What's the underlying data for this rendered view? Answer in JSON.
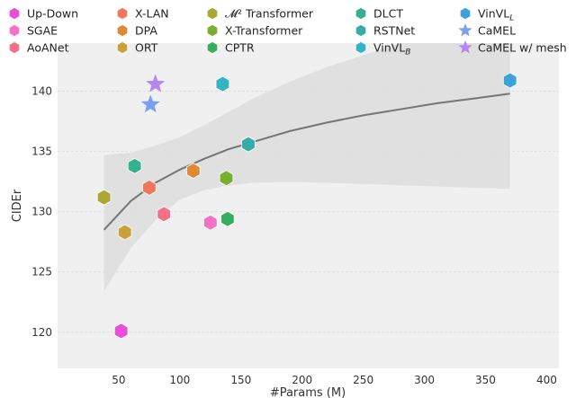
{
  "chart_data": {
    "type": "scatter",
    "title": "",
    "xlabel": "#Params (M)",
    "ylabel": "CIDEr",
    "xlim": [
      0,
      410
    ],
    "ylim": [
      117,
      144
    ],
    "xticks": [
      50,
      100,
      150,
      200,
      250,
      300,
      350,
      400
    ],
    "yticks": [
      120,
      125,
      130,
      135,
      140
    ],
    "grid": true,
    "legend_position": "top",
    "series": [
      {
        "name": "Up-Down",
        "marker": "hexagon",
        "color": "#e84fd9",
        "x": 52,
        "y": 120.1
      },
      {
        "name": "SGAE",
        "marker": "hexagon",
        "color": "#f273c3",
        "x": 125,
        "y": 129.1
      },
      {
        "name": "AoANet",
        "marker": "hexagon",
        "color": "#f0718a",
        "x": 87,
        "y": 129.8
      },
      {
        "name": "X-LAN",
        "marker": "hexagon",
        "color": "#f0765c",
        "x": 75,
        "y": 132.0
      },
      {
        "name": "DPA",
        "marker": "hexagon",
        "color": "#dd8a32",
        "x": 111,
        "y": 133.4
      },
      {
        "name": "ORT",
        "marker": "hexagon",
        "color": "#c8a13c",
        "x": 55,
        "y": 128.3
      },
      {
        "name": "M² Transformer",
        "marker": "hexagon",
        "color": "#a8a832",
        "x": 38,
        "y": 131.2
      },
      {
        "name": "X-Transformer",
        "marker": "hexagon",
        "color": "#77b02f",
        "x": 138,
        "y": 132.8
      },
      {
        "name": "CPTR",
        "marker": "hexagon",
        "color": "#35ae5f",
        "x": 139,
        "y": 129.4
      },
      {
        "name": "DLCT",
        "marker": "hexagon",
        "color": "#36b08f",
        "x": 63,
        "y": 133.8
      },
      {
        "name": "RSTNet",
        "marker": "hexagon",
        "color": "#35aca5",
        "x": 156,
        "y": 135.6
      },
      {
        "name": "VinVL_B",
        "marker": "hexagon",
        "color": "#35b2c4",
        "x": 135,
        "y": 140.6
      },
      {
        "name": "VinVL_L",
        "marker": "hexagon",
        "color": "#3aa3dc",
        "x": 370,
        "y": 140.9
      },
      {
        "name": "CaMEL",
        "marker": "star",
        "color": "#7a9ef0",
        "x": 76,
        "y": 138.9
      },
      {
        "name": "CaMEL w/ mesh",
        "marker": "star",
        "color": "#b585ee",
        "x": 80,
        "y": 140.6
      }
    ],
    "trend": {
      "type": "log-fit",
      "x": [
        38,
        60,
        80,
        100,
        120,
        140,
        160,
        190,
        220,
        250,
        280,
        310,
        340,
        370
      ],
      "y": [
        128.5,
        130.9,
        132.4,
        133.5,
        134.4,
        135.2,
        135.8,
        136.7,
        137.4,
        138.0,
        138.5,
        139.0,
        139.4,
        139.8
      ],
      "ci_upper": [
        134.7,
        134.9,
        135.5,
        136.2,
        137.2,
        138.3,
        139.4,
        140.8,
        142.0,
        143.0,
        144.0,
        144.0,
        144.0,
        144.0
      ],
      "ci_lower": [
        123.4,
        127.0,
        129.3,
        131.0,
        131.8,
        132.2,
        132.4,
        132.5,
        132.4,
        132.3,
        132.2,
        132.1,
        132.0,
        131.9
      ]
    },
    "legend": [
      {
        "label": "Up-Down",
        "label_main": "Up-Down",
        "label_sub": ""
      },
      {
        "label": "SGAE",
        "label_main": "SGAE",
        "label_sub": ""
      },
      {
        "label": "AoANet",
        "label_main": "AoANet",
        "label_sub": ""
      },
      {
        "label": "X-LAN",
        "label_main": "X-LAN",
        "label_sub": ""
      },
      {
        "label": "DPA",
        "label_main": "DPA",
        "label_sub": ""
      },
      {
        "label": "ORT",
        "label_main": "ORT",
        "label_sub": ""
      },
      {
        "label": "M² Transformer",
        "label_main": "𝓜² Transformer",
        "label_sub": ""
      },
      {
        "label": "X-Transformer",
        "label_main": "X-Transformer",
        "label_sub": ""
      },
      {
        "label": "CPTR",
        "label_main": "CPTR",
        "label_sub": ""
      },
      {
        "label": "DLCT",
        "label_main": "DLCT",
        "label_sub": ""
      },
      {
        "label": "RSTNet",
        "label_main": "RSTNet",
        "label_sub": ""
      },
      {
        "label": "VinVL_B",
        "label_main": "VinVL",
        "label_sub": "B"
      },
      {
        "label": "VinVL_L",
        "label_main": "VinVL",
        "label_sub": "L"
      },
      {
        "label": "CaMEL",
        "label_main": "CaMEL",
        "label_sub": ""
      },
      {
        "label": "CaMEL w/ mesh",
        "label_main": "CaMEL w/ mesh",
        "label_sub": ""
      }
    ],
    "colors": {
      "plot_background": "#f0f0f0",
      "grid": "#dcdcdc",
      "trend_line": "#757575",
      "confidence_band": "#dedede"
    }
  }
}
